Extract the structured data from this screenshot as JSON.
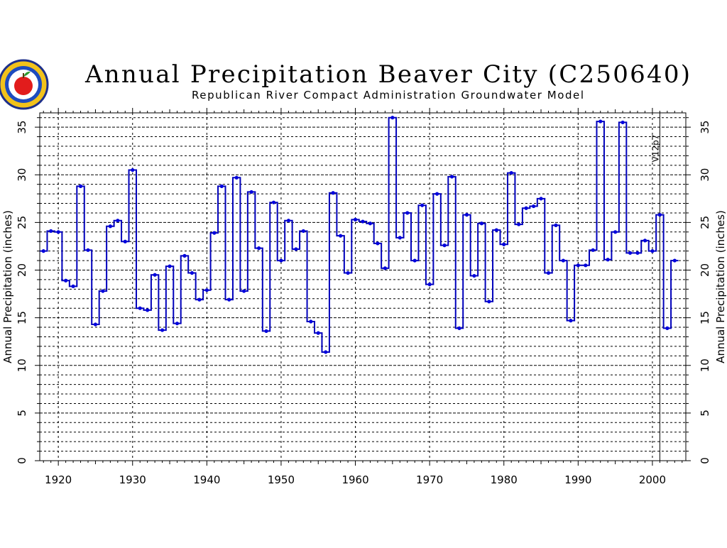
{
  "chart_data": {
    "type": "line",
    "style": "step",
    "title": "Annual Precipitation Beaver City (C250640)",
    "subtitle": "Republican River Compact Administration Groundwater Model",
    "xlabel": "",
    "ylabel": "Annual Precipitation (inches)",
    "xlim": [
      1917.5,
      2004.5
    ],
    "ylim": [
      0,
      36.5
    ],
    "xticks": [
      1920,
      1930,
      1940,
      1950,
      1960,
      1970,
      1980,
      1990,
      2000
    ],
    "xtick_labels": [
      "1920",
      "1930",
      "1940",
      "1950",
      "1960",
      "1970",
      "1980",
      "1990",
      "2000"
    ],
    "yticks": [
      0,
      5,
      10,
      15,
      20,
      25,
      30,
      35
    ],
    "ytick_labels": [
      "0",
      "5",
      "10",
      "15",
      "20",
      "25",
      "30",
      "35"
    ],
    "grid": true,
    "line_color": "#0000bb",
    "marker_color": "#0000dd",
    "annotation": {
      "text": "V12p7",
      "x": 2001
    },
    "series": [
      {
        "x": [
          1918,
          1919,
          1920,
          1921,
          1922,
          1923,
          1924,
          1925,
          1926,
          1927,
          1928,
          1929,
          1930,
          1931,
          1932,
          1933,
          1934,
          1935,
          1936,
          1937,
          1938,
          1939,
          1940,
          1941,
          1942,
          1943,
          1944,
          1945,
          1946,
          1947,
          1948,
          1949,
          1950,
          1951,
          1952,
          1953,
          1954,
          1955,
          1956,
          1957,
          1958,
          1959,
          1960,
          1961,
          1962,
          1963,
          1964,
          1965,
          1966,
          1967,
          1968,
          1969,
          1970,
          1971,
          1972,
          1973,
          1974,
          1975,
          1976,
          1977,
          1978,
          1979,
          1980,
          1981,
          1982,
          1983,
          1984,
          1985,
          1986,
          1987,
          1988,
          1989,
          1990,
          1991,
          1992,
          1993,
          1994,
          1995,
          1996,
          1997,
          1998,
          1999,
          2000,
          2001,
          2002,
          2003
        ],
        "values": [
          22.0,
          24.1,
          24.0,
          18.9,
          18.3,
          28.8,
          22.1,
          14.3,
          17.8,
          24.6,
          25.2,
          23.0,
          30.5,
          16.0,
          15.8,
          19.5,
          13.7,
          20.4,
          14.4,
          21.5,
          19.7,
          16.9,
          17.9,
          23.9,
          28.8,
          16.9,
          29.7,
          17.8,
          28.2,
          22.3,
          13.6,
          27.1,
          21.0,
          25.2,
          22.2,
          24.1,
          14.6,
          13.4,
          11.4,
          28.1,
          23.6,
          19.7,
          25.3,
          25.1,
          24.9,
          22.8,
          20.2,
          36.0,
          23.4,
          26.0,
          21.0,
          26.8,
          18.5,
          28.0,
          22.6,
          29.8,
          13.9,
          25.8,
          19.4,
          24.9,
          16.7,
          24.2,
          22.7,
          30.2,
          24.8,
          26.5,
          26.7,
          27.5,
          19.7,
          24.7,
          21.0,
          14.7,
          20.5,
          20.5,
          22.1,
          35.6,
          21.1,
          24.0,
          35.5,
          21.8,
          21.8,
          23.1,
          22.0,
          25.8,
          13.9,
          21.0
        ]
      }
    ]
  }
}
